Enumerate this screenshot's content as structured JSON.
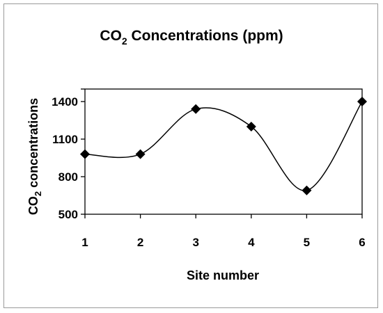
{
  "chart_data": {
    "type": "line",
    "title": "CO",
    "title_sub": "2",
    "title_rest": " Concentrations (ppm)",
    "xlabel": "Site number",
    "ylabel": "CO",
    "ylabel_sub": "2",
    "ylabel_rest": " concentrations",
    "x": [
      1,
      2,
      3,
      4,
      5,
      6
    ],
    "x_tick_labels": [
      "1",
      "2",
      "3",
      "4",
      "5",
      "6"
    ],
    "y_tick_labels": [
      "500",
      "800",
      "1100",
      "1400"
    ],
    "y_ticks": [
      500,
      800,
      1100,
      1400
    ],
    "ylim": [
      500,
      1500
    ],
    "xlim": [
      1,
      6
    ],
    "series": [
      {
        "values": [
          980,
          980,
          1340,
          1200,
          690,
          1400
        ]
      }
    ],
    "marker": "diamond",
    "line_style": "smooth",
    "grid": false,
    "legend": "none",
    "colors": {
      "line": "#000000",
      "marker": "#000000"
    }
  }
}
